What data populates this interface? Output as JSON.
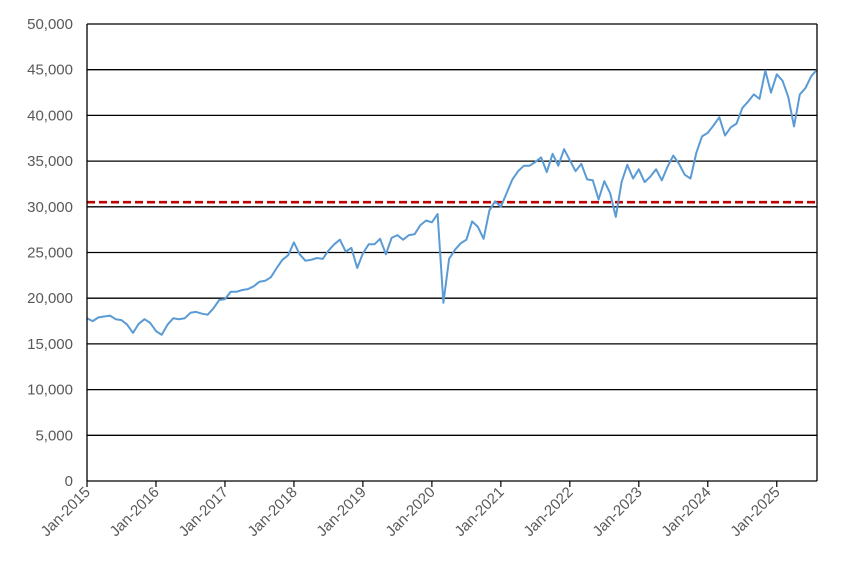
{
  "chart_data": {
    "type": "line",
    "title": "",
    "xlabel": "",
    "ylabel": "",
    "ylim": [
      0,
      50000
    ],
    "xlim": [
      "2015-01",
      "2025-08"
    ],
    "grid": true,
    "legend": "none",
    "y_ticks": [
      "0",
      "5,000",
      "10,000",
      "15,000",
      "20,000",
      "25,000",
      "30,000",
      "35,000",
      "40,000",
      "45,000",
      "50,000"
    ],
    "x_ticks": [
      "Jan-2015",
      "Jan-2016",
      "Jan-2017",
      "Jan-2018",
      "Jan-2019",
      "Jan-2020",
      "Jan-2021",
      "Jan-2022",
      "Jan-2023",
      "Jan-2024",
      "Jan-2025"
    ],
    "colors": {
      "series": "#5b9bd5",
      "reference": "#c00000",
      "grid": "#000000",
      "axis": "#000000"
    },
    "reference_line": {
      "y": 30500,
      "style": "dashed"
    },
    "series": [
      {
        "points": [
          [
            "2015-01",
            17800
          ],
          [
            "2015-02",
            17500
          ],
          [
            "2015-03",
            17900
          ],
          [
            "2015-04",
            18000
          ],
          [
            "2015-05",
            18100
          ],
          [
            "2015-06",
            17700
          ],
          [
            "2015-07",
            17600
          ],
          [
            "2015-08",
            17100
          ],
          [
            "2015-09",
            16200
          ],
          [
            "2015-10",
            17200
          ],
          [
            "2015-11",
            17700
          ],
          [
            "2015-12",
            17300
          ],
          [
            "2016-01",
            16400
          ],
          [
            "2016-02",
            16000
          ],
          [
            "2016-03",
            17100
          ],
          [
            "2016-04",
            17800
          ],
          [
            "2016-05",
            17700
          ],
          [
            "2016-06",
            17800
          ],
          [
            "2016-07",
            18400
          ],
          [
            "2016-08",
            18500
          ],
          [
            "2016-09",
            18300
          ],
          [
            "2016-10",
            18200
          ],
          [
            "2016-11",
            18900
          ],
          [
            "2016-12",
            19800
          ],
          [
            "2017-01",
            19900
          ],
          [
            "2017-02",
            20700
          ],
          [
            "2017-03",
            20700
          ],
          [
            "2017-04",
            20900
          ],
          [
            "2017-05",
            21000
          ],
          [
            "2017-06",
            21300
          ],
          [
            "2017-07",
            21800
          ],
          [
            "2017-08",
            21900
          ],
          [
            "2017-09",
            22300
          ],
          [
            "2017-10",
            23300
          ],
          [
            "2017-11",
            24200
          ],
          [
            "2017-12",
            24700
          ],
          [
            "2018-01",
            26100
          ],
          [
            "2018-02",
            24800
          ],
          [
            "2018-03",
            24100
          ],
          [
            "2018-04",
            24200
          ],
          [
            "2018-05",
            24400
          ],
          [
            "2018-06",
            24300
          ],
          [
            "2018-07",
            25200
          ],
          [
            "2018-08",
            25900
          ],
          [
            "2018-09",
            26400
          ],
          [
            "2018-10",
            25100
          ],
          [
            "2018-11",
            25500
          ],
          [
            "2018-12",
            23300
          ],
          [
            "2019-01",
            24900
          ],
          [
            "2019-02",
            25900
          ],
          [
            "2019-03",
            25900
          ],
          [
            "2019-04",
            26500
          ],
          [
            "2019-05",
            24800
          ],
          [
            "2019-06",
            26600
          ],
          [
            "2019-07",
            26900
          ],
          [
            "2019-08",
            26400
          ],
          [
            "2019-09",
            26900
          ],
          [
            "2019-10",
            27000
          ],
          [
            "2019-11",
            28000
          ],
          [
            "2019-12",
            28500
          ],
          [
            "2020-01",
            28300
          ],
          [
            "2020-02",
            29200
          ],
          [
            "2020-03",
            19500
          ],
          [
            "2020-04",
            24300
          ],
          [
            "2020-05",
            25300
          ],
          [
            "2020-06",
            26000
          ],
          [
            "2020-07",
            26400
          ],
          [
            "2020-08",
            28400
          ],
          [
            "2020-09",
            27800
          ],
          [
            "2020-10",
            26500
          ],
          [
            "2020-11",
            29600
          ],
          [
            "2020-12",
            30600
          ],
          [
            "2021-01",
            30000
          ],
          [
            "2021-02",
            31500
          ],
          [
            "2021-03",
            33000
          ],
          [
            "2021-04",
            33900
          ],
          [
            "2021-05",
            34500
          ],
          [
            "2021-06",
            34500
          ],
          [
            "2021-07",
            34900
          ],
          [
            "2021-08",
            35400
          ],
          [
            "2021-09",
            33800
          ],
          [
            "2021-10",
            35800
          ],
          [
            "2021-11",
            34500
          ],
          [
            "2021-12",
            36300
          ],
          [
            "2022-01",
            35100
          ],
          [
            "2022-02",
            33900
          ],
          [
            "2022-03",
            34700
          ],
          [
            "2022-04",
            33000
          ],
          [
            "2022-05",
            32900
          ],
          [
            "2022-06",
            30800
          ],
          [
            "2022-07",
            32800
          ],
          [
            "2022-08",
            31500
          ],
          [
            "2022-09",
            28900
          ],
          [
            "2022-10",
            32700
          ],
          [
            "2022-11",
            34600
          ],
          [
            "2022-12",
            33100
          ],
          [
            "2023-01",
            34100
          ],
          [
            "2023-02",
            32700
          ],
          [
            "2023-03",
            33300
          ],
          [
            "2023-04",
            34100
          ],
          [
            "2023-05",
            32900
          ],
          [
            "2023-06",
            34400
          ],
          [
            "2023-07",
            35600
          ],
          [
            "2023-08",
            34700
          ],
          [
            "2023-09",
            33500
          ],
          [
            "2023-10",
            33100
          ],
          [
            "2023-11",
            35900
          ],
          [
            "2023-12",
            37700
          ],
          [
            "2024-01",
            38100
          ],
          [
            "2024-02",
            38900
          ],
          [
            "2024-03",
            39800
          ],
          [
            "2024-04",
            37800
          ],
          [
            "2024-05",
            38700
          ],
          [
            "2024-06",
            39100
          ],
          [
            "2024-07",
            40800
          ],
          [
            "2024-08",
            41500
          ],
          [
            "2024-09",
            42300
          ],
          [
            "2024-10",
            41800
          ],
          [
            "2024-11",
            44900
          ],
          [
            "2024-12",
            42500
          ],
          [
            "2025-01",
            44500
          ],
          [
            "2025-02",
            43800
          ],
          [
            "2025-03",
            42000
          ],
          [
            "2025-04",
            38800
          ],
          [
            "2025-05",
            42300
          ],
          [
            "2025-06",
            43000
          ],
          [
            "2025-07",
            44300
          ],
          [
            "2025-08",
            45000
          ]
        ]
      }
    ]
  }
}
